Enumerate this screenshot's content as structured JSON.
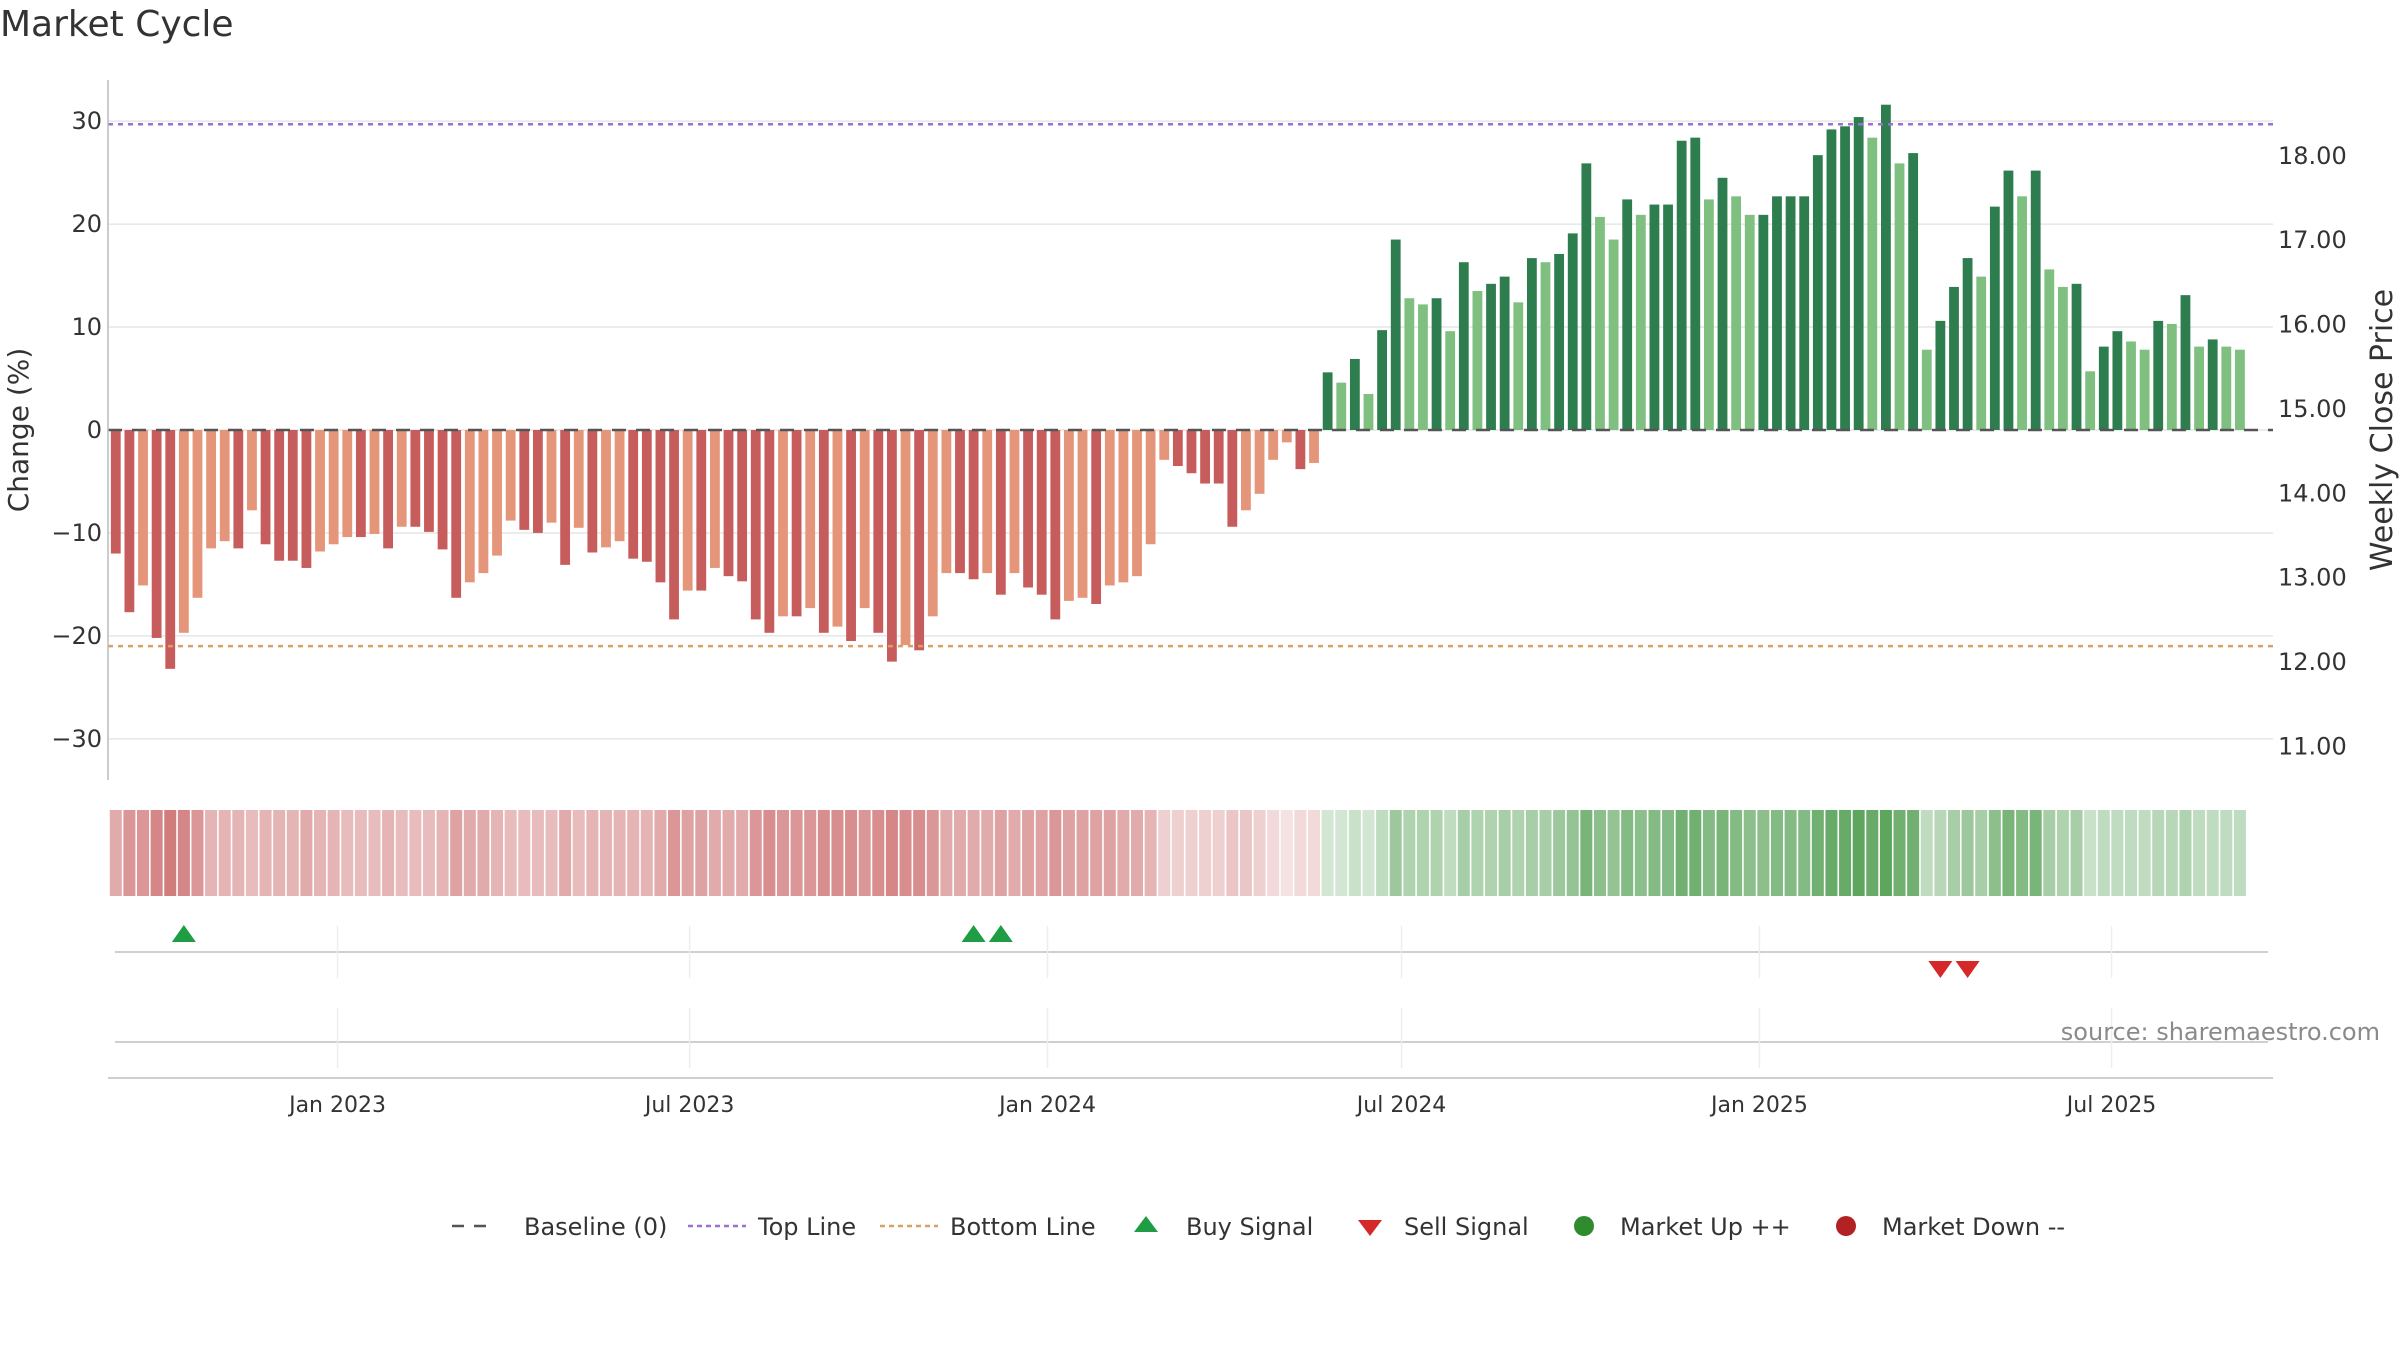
{
  "chart_data": {
    "type": "bar",
    "title": "Market Cycle",
    "ylabel": "Change (%)",
    "y2label": "Weekly Close Price",
    "ylim": [
      -34,
      34
    ],
    "y2lim": [
      10.6,
      18.9
    ],
    "yticks": [
      -30,
      -20,
      -10,
      0,
      10,
      20,
      30
    ],
    "yticks_labels": [
      "−30",
      "−20",
      "−10",
      "0",
      "10",
      "20",
      "30"
    ],
    "y2ticks": [
      11,
      12,
      13,
      14,
      15,
      16,
      17,
      18
    ],
    "y2ticks_labels": [
      "11.00",
      "12.00",
      "13.00",
      "14.00",
      "15.00",
      "16.00",
      "17.00",
      "18.00"
    ],
    "x_start": "2022-09-05",
    "x_end": "2025-09-22",
    "xticks": [
      {
        "date": "2023-01-01",
        "label": "Jan 2023"
      },
      {
        "date": "2023-07-01",
        "label": "Jul 2023"
      },
      {
        "date": "2024-01-01",
        "label": "Jan 2024"
      },
      {
        "date": "2024-07-01",
        "label": "Jul 2024"
      },
      {
        "date": "2025-01-01",
        "label": "Jan 2025"
      },
      {
        "date": "2025-07-01",
        "label": "Jul 2025"
      }
    ],
    "top_line": 29.7,
    "bottom_line": -21,
    "weeks": {
      "start": "2022-09-09",
      "values": [
        -12,
        -17.7,
        -15.1,
        -20.2,
        -23.2,
        -19.7,
        -16.3,
        -11.5,
        -10.8,
        -11.5,
        -7.8,
        -11.1,
        -12.7,
        -12.7,
        -13.4,
        -11.8,
        -11.1,
        -10.4,
        -10.4,
        -10.1,
        -11.5,
        -9.4,
        -9.4,
        -9.9,
        -11.6,
        -16.3,
        -14.8,
        -13.9,
        -12.2,
        -8.8,
        -9.7,
        -10,
        -9,
        -13.1,
        -9.5,
        -11.9,
        -11.4,
        -10.8,
        -12.5,
        -12.8,
        -14.8,
        -18.4,
        -15.6,
        -15.6,
        -13.4,
        -14.2,
        -14.7,
        -18.4,
        -19.7,
        -18.1,
        -18.1,
        -17.3,
        -19.7,
        -19.1,
        -20.5,
        -17.3,
        -19.7,
        -22.5,
        -20.9,
        -21.4,
        -18.1,
        -13.9,
        -13.9,
        -14.5,
        -13.9,
        -16,
        -13.9,
        -15.3,
        -16,
        -18.4,
        -16.6,
        -16.3,
        -16.9,
        -15.1,
        -14.8,
        -14.2,
        -11.1,
        -2.9,
        -3.5,
        -4.2,
        -5.2,
        -5.2,
        -9.4,
        -7.8,
        -6.2,
        -2.9,
        -1.2,
        -3.8,
        -3.2,
        5.6,
        4.6,
        6.9,
        3.5,
        9.7,
        18.5,
        12.8,
        12.2,
        12.8,
        9.6,
        16.3,
        13.5,
        14.2,
        14.9,
        12.4,
        16.7,
        16.3,
        17.1,
        19.1,
        25.9,
        20.7,
        18.5,
        22.4,
        20.9,
        21.9,
        21.9,
        28.1,
        28.4,
        22.4,
        24.5,
        22.7,
        20.9,
        20.9,
        22.7,
        22.7,
        22.7,
        26.7,
        29.2,
        29.5,
        30.4,
        28.4,
        31.6,
        25.9,
        26.9,
        7.8,
        10.6,
        13.9,
        16.7,
        14.9,
        21.7,
        25.2,
        22.7,
        25.2,
        15.6,
        13.9,
        14.2,
        5.7,
        8.1,
        9.6,
        8.6,
        7.8,
        10.6,
        10.3,
        13.1,
        8.1,
        8.8,
        8.1,
        7.8
      ]
    },
    "market_band_levels": [
      -0.45,
      -0.55,
      -0.55,
      -0.65,
      -0.7,
      -0.65,
      -0.55,
      -0.4,
      -0.4,
      -0.4,
      -0.35,
      -0.4,
      -0.4,
      -0.4,
      -0.45,
      -0.4,
      -0.4,
      -0.35,
      -0.35,
      -0.35,
      -0.4,
      -0.35,
      -0.35,
      -0.35,
      -0.4,
      -0.5,
      -0.45,
      -0.45,
      -0.4,
      -0.35,
      -0.35,
      -0.35,
      -0.35,
      -0.45,
      -0.35,
      -0.4,
      -0.4,
      -0.4,
      -0.4,
      -0.4,
      -0.45,
      -0.55,
      -0.5,
      -0.5,
      -0.45,
      -0.45,
      -0.45,
      -0.55,
      -0.6,
      -0.55,
      -0.55,
      -0.55,
      -0.6,
      -0.6,
      -0.6,
      -0.55,
      -0.6,
      -0.65,
      -0.6,
      -0.6,
      -0.55,
      -0.45,
      -0.45,
      -0.45,
      -0.45,
      -0.5,
      -0.45,
      -0.5,
      -0.5,
      -0.55,
      -0.5,
      -0.5,
      -0.5,
      -0.5,
      -0.45,
      -0.45,
      -0.4,
      -0.25,
      -0.25,
      -0.25,
      -0.25,
      -0.25,
      -0.3,
      -0.3,
      -0.25,
      -0.2,
      -0.15,
      -0.2,
      -0.2,
      0.25,
      0.25,
      0.3,
      0.25,
      0.35,
      0.55,
      0.45,
      0.45,
      0.45,
      0.35,
      0.5,
      0.45,
      0.45,
      0.5,
      0.45,
      0.5,
      0.5,
      0.55,
      0.6,
      0.75,
      0.65,
      0.6,
      0.7,
      0.65,
      0.7,
      0.7,
      0.8,
      0.8,
      0.7,
      0.75,
      0.7,
      0.65,
      0.65,
      0.7,
      0.7,
      0.7,
      0.8,
      0.85,
      0.85,
      0.9,
      0.85,
      0.9,
      0.8,
      0.8,
      0.35,
      0.4,
      0.5,
      0.55,
      0.5,
      0.65,
      0.75,
      0.7,
      0.75,
      0.5,
      0.45,
      0.5,
      0.3,
      0.35,
      0.35,
      0.35,
      0.35,
      0.4,
      0.4,
      0.45,
      0.35,
      0.35,
      0.35,
      0.35
    ],
    "buy_signals": [
      "2022-10-14",
      "2023-11-24",
      "2023-12-08"
    ],
    "sell_signals": [
      "2025-04-04",
      "2025-04-18"
    ],
    "colors": {
      "neg_dark": "#c75c5c",
      "neg_light": "#e4957a",
      "pos_dark": "#2e7d4f",
      "pos_light": "#7fbf7f",
      "top_line": "#9b6fd6",
      "bottom_line": "#d9a066",
      "buy": "#1f9d45",
      "sell": "#d62828",
      "market_up": "#2e8b2e",
      "market_down": "#b22222",
      "baseline": "#555555",
      "grid": "#e6e6e6"
    },
    "legend": {
      "placement": "bottom-center",
      "items": [
        {
          "key": "baseline",
          "label": "Baseline (0)"
        },
        {
          "key": "top",
          "label": "Top Line"
        },
        {
          "key": "bottom",
          "label": "Bottom Line"
        },
        {
          "key": "buy",
          "label": "Buy Signal"
        },
        {
          "key": "sell",
          "label": "Sell Signal"
        },
        {
          "key": "up",
          "label": "Market Up ++"
        },
        {
          "key": "down",
          "label": "Market Down --"
        }
      ]
    },
    "source": "source: sharemaestro.com"
  }
}
